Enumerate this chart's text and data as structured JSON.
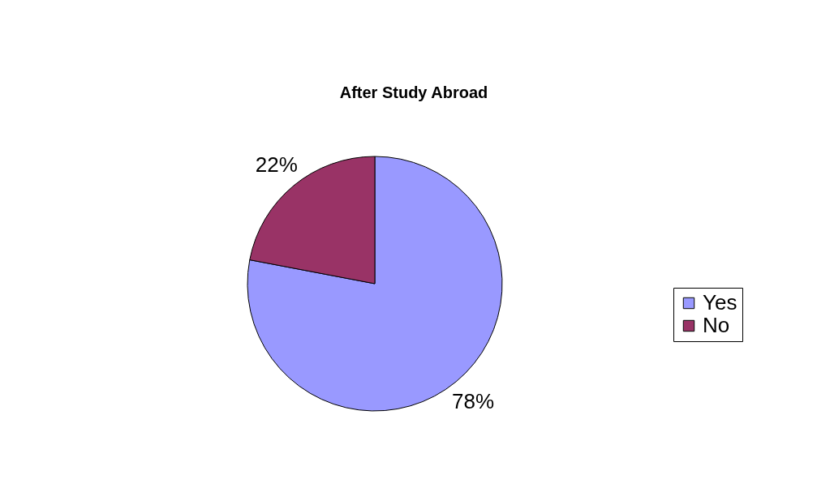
{
  "chart_data": {
    "type": "pie",
    "title": "After Study Abroad",
    "categories": [
      "Yes",
      "No"
    ],
    "values": [
      78,
      22
    ],
    "colors": [
      "#9999ff",
      "#993366"
    ],
    "value_labels": [
      "78%",
      "22%"
    ],
    "legend": "right"
  }
}
